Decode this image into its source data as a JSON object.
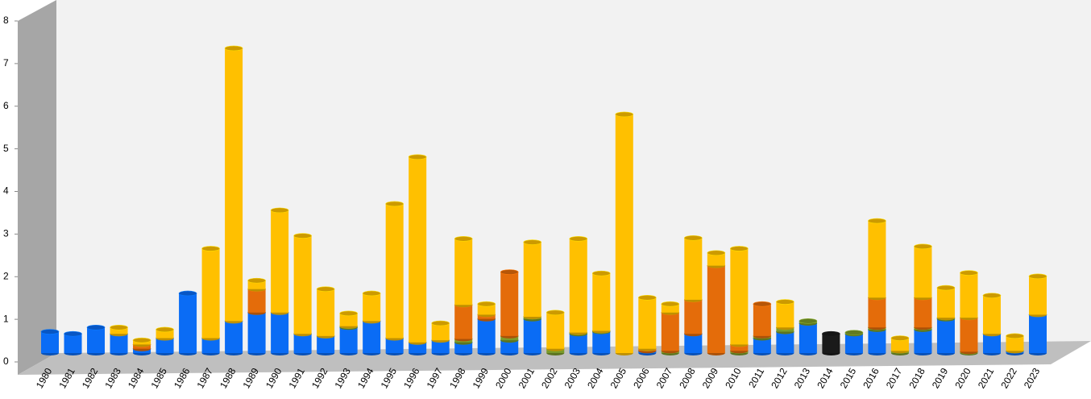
{
  "chart_data": {
    "type": "bar",
    "stacked": true,
    "categories": [
      "1980",
      "1981",
      "1982",
      "1983",
      "1984",
      "1985",
      "1986",
      "1987",
      "1988",
      "1989",
      "1990",
      "1991",
      "1992",
      "1993",
      "1994",
      "1995",
      "1996",
      "1997",
      "1998",
      "1999",
      "2000",
      "2001",
      "2002",
      "2003",
      "2004",
      "2005",
      "2006",
      "2007",
      "2008",
      "2009",
      "2010",
      "2011",
      "2012",
      "2013",
      "2014",
      "2015",
      "2016",
      "2017",
      "2018",
      "2019",
      "2020",
      "2021",
      "2022",
      "2023"
    ],
    "series": [
      {
        "color": "#0a6cf5",
        "values": [
          0.5,
          0.45,
          0.6,
          0.45,
          0.1,
          0.35,
          1.4,
          0.35,
          0.75,
          0.95,
          0.95,
          0.45,
          0.4,
          0.6,
          0.75,
          0.35,
          0.25,
          0.3,
          0.25,
          0.8,
          0.3,
          0.8,
          0,
          0.45,
          0.5,
          0,
          0.05,
          0,
          0.45,
          0,
          0,
          0.35,
          0.5,
          0.7,
          0,
          0.45,
          0.55,
          0,
          0.55,
          0.8,
          0,
          0.45,
          0.05,
          0.9
        ]
      },
      {
        "color": "#7a9a2a",
        "values": [
          0,
          0,
          0,
          0,
          0,
          0,
          0,
          0,
          0,
          0,
          0,
          0,
          0,
          0.03,
          0,
          0,
          0,
          0,
          0.08,
          0,
          0.1,
          0.05,
          0.1,
          0.03,
          0.02,
          0,
          0,
          0.05,
          0,
          0,
          0.05,
          0.05,
          0.1,
          0.05,
          0,
          0.03,
          0.05,
          0.05,
          0.05,
          0.03,
          0.03,
          0,
          0,
          0
        ]
      },
      {
        "color": "#e46c0a",
        "values": [
          0,
          0,
          0,
          0,
          0.1,
          0,
          0,
          0,
          0,
          0.55,
          0,
          0,
          0,
          0,
          0,
          0,
          0,
          0,
          0.8,
          0.1,
          1.5,
          0,
          0,
          0,
          0,
          0,
          0.05,
          0.9,
          0.8,
          2.05,
          0.15,
          0.75,
          0,
          0,
          0,
          0,
          0.7,
          0,
          0.7,
          0,
          0.8,
          0,
          0,
          0
        ]
      },
      {
        "color": "#ffc000",
        "values": [
          0,
          0,
          0,
          0.15,
          0.1,
          0.2,
          0,
          2.1,
          6.4,
          0.2,
          2.4,
          2.3,
          1.1,
          0.3,
          0.65,
          3.15,
          4.35,
          0.4,
          1.55,
          0.25,
          0,
          1.75,
          0.85,
          2.2,
          1.35,
          5.6,
          1.2,
          0.2,
          1.45,
          0.3,
          2.25,
          0,
          0.6,
          0,
          0,
          0,
          1.8,
          0.3,
          1.2,
          0.7,
          1.05,
          0.9,
          0.35,
          0.9
        ]
      },
      {
        "color": "#1a1a1a",
        "values": [
          0,
          0,
          0,
          0,
          0,
          0,
          0,
          0,
          0,
          0,
          0,
          0,
          0,
          0,
          0,
          0,
          0,
          0,
          0,
          0,
          0,
          0,
          0,
          0,
          0,
          0,
          0,
          0,
          0,
          0,
          0,
          0,
          0,
          0,
          0.45,
          0,
          0,
          0,
          0,
          0,
          0,
          0,
          0,
          0
        ]
      }
    ],
    "ylim": [
      0,
      8
    ],
    "yticks": [
      0,
      1,
      2,
      3,
      4,
      5,
      6,
      7,
      8
    ]
  }
}
